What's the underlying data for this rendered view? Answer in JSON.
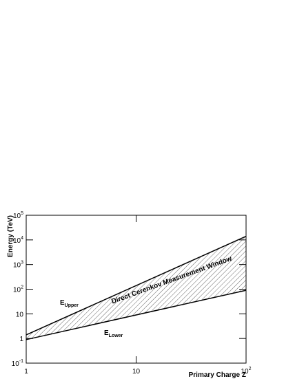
{
  "chart_data": {
    "type": "line",
    "log_x": true,
    "log_y": true,
    "hatch_between": true,
    "x_label": "Primary Charge Z",
    "y_label": "Energy (TeV)",
    "x": [
      1,
      100
    ],
    "series": [
      {
        "name": "E Upper",
        "color": "#000000",
        "values": [
          1.4,
          14000
        ]
      },
      {
        "name": "E Lower",
        "color": "#000000",
        "values": [
          0.9,
          90
        ]
      }
    ],
    "annotations": [
      {
        "text": "E",
        "subscript": "Upper"
      },
      {
        "text": "E",
        "subscript": "Lower"
      },
      {
        "text": "Direct Cerenkov Measurement Window"
      }
    ],
    "xlim": [
      1,
      100
    ],
    "xticks": [
      1,
      10,
      {
        "value": 100,
        "label": "10",
        "exponent": "2"
      }
    ],
    "ylim": [
      0.1,
      100000
    ],
    "yticks": [
      {
        "value": 0.1,
        "label": "10",
        "exponent": "-1"
      },
      1,
      10,
      {
        "value": 100,
        "label": "10",
        "exponent": "2"
      },
      {
        "value": 1000,
        "label": "10",
        "exponent": "3"
      },
      {
        "value": 10000,
        "label": "10",
        "exponent": "4"
      },
      {
        "value": 100000,
        "label": "10",
        "exponent": "5"
      }
    ]
  }
}
